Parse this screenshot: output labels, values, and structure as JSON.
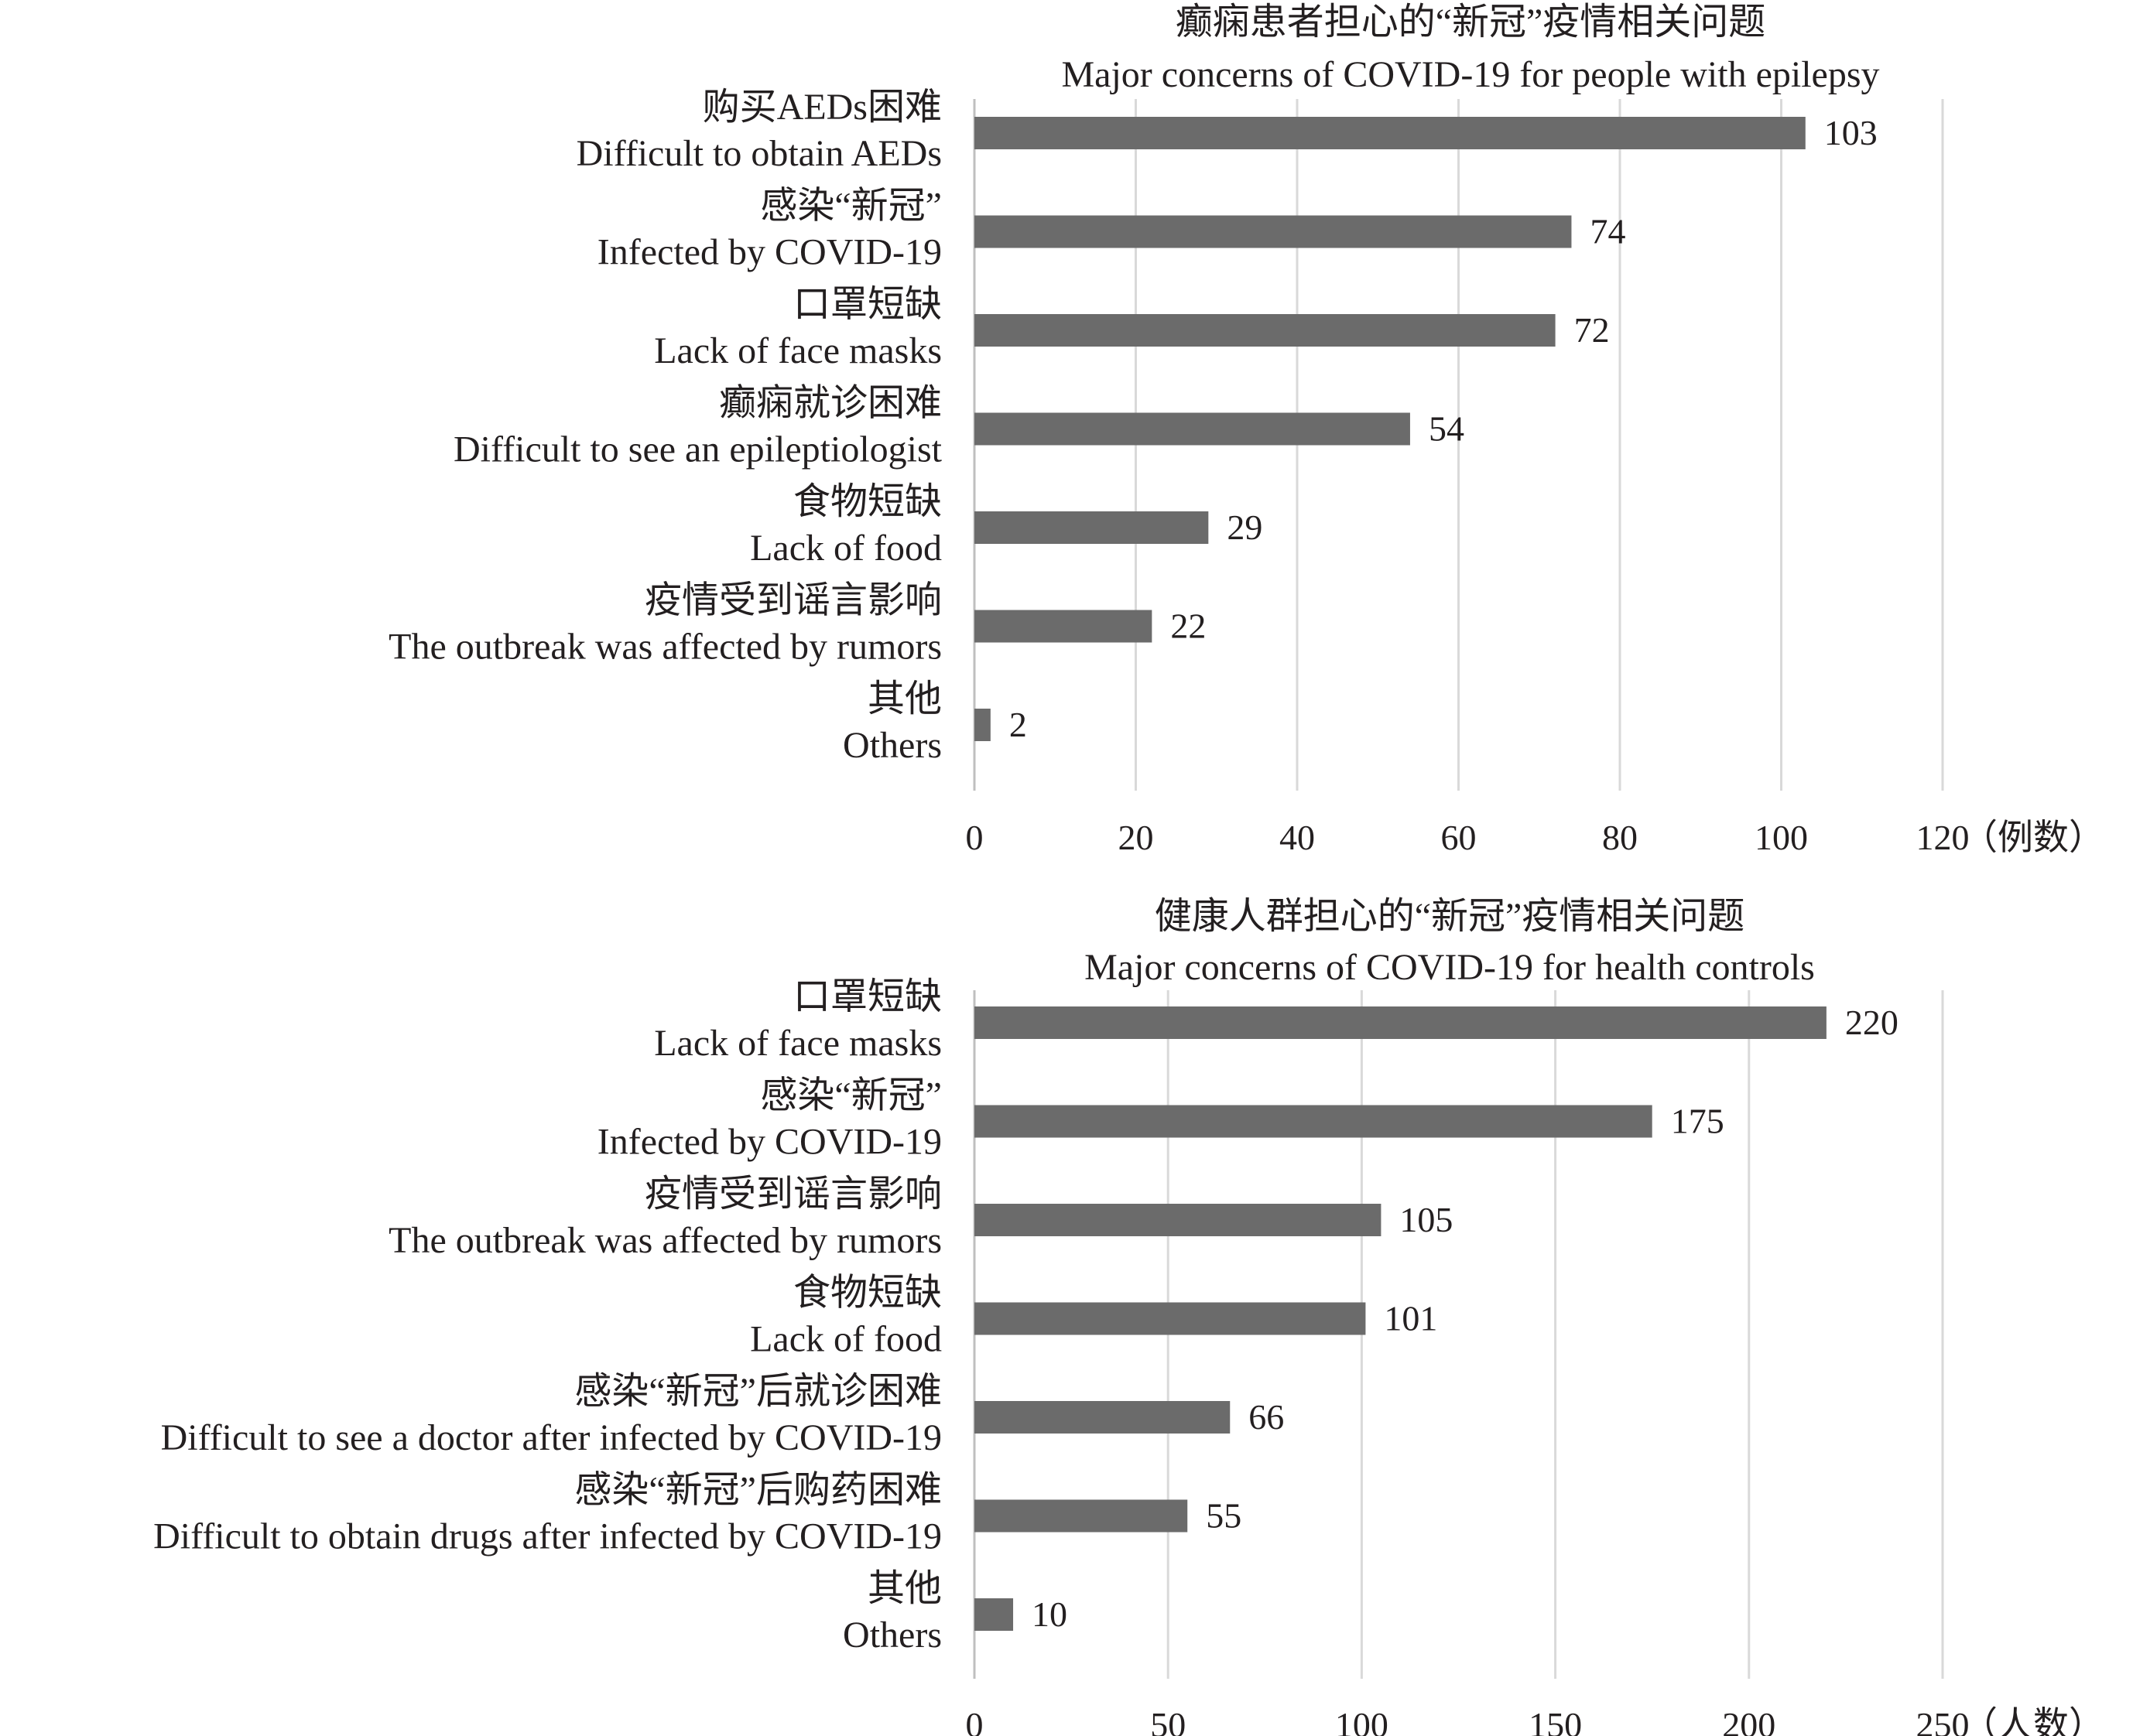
{
  "chart_data": [
    {
      "type": "bar",
      "orientation": "horizontal",
      "title": "癫痫患者担心的“新冠”疫情相关问题",
      "subtitle": "Major concerns of COVID-19 for people with epilepsy",
      "categories": [
        {
          "zh": "购买AEDs困难",
          "en": "Difficult to obtain AEDs"
        },
        {
          "zh": "感染“新冠”",
          "en": "Infected by COVID-19"
        },
        {
          "zh": "口罩短缺",
          "en": "Lack of face masks"
        },
        {
          "zh": "癫痫就诊困难",
          "en": "Difficult to see an epileptiologist"
        },
        {
          "zh": "食物短缺",
          "en": "Lack of food"
        },
        {
          "zh": "疫情受到谣言影响",
          "en": "The outbreak was affected by rumors"
        },
        {
          "zh": "其他",
          "en": "Others"
        }
      ],
      "values": [
        103,
        74,
        72,
        54,
        29,
        22,
        2
      ],
      "xlim": [
        0,
        120
      ],
      "xticks": [
        "0",
        "20",
        "40",
        "60",
        "80",
        "100",
        "120"
      ],
      "unit_label": "（例数）",
      "grid": true,
      "bar_color": "#6b6b6b"
    },
    {
      "type": "bar",
      "orientation": "horizontal",
      "title": "健康人群担心的“新冠”疫情相关问题",
      "subtitle": "Major concerns of COVID-19 for health controls",
      "categories": [
        {
          "zh": "口罩短缺",
          "en": "Lack of face masks"
        },
        {
          "zh": "感染“新冠”",
          "en": "Infected by COVID-19"
        },
        {
          "zh": "疫情受到谣言影响",
          "en": "The outbreak was affected by rumors"
        },
        {
          "zh": "食物短缺",
          "en": "Lack of food"
        },
        {
          "zh": "感染“新冠”后就诊困难",
          "en": "Difficult to see a doctor after infected by COVID-19"
        },
        {
          "zh": "感染“新冠”后购药困难",
          "en": "Difficult to obtain drugs after infected by COVID-19"
        },
        {
          "zh": "其他",
          "en": "Others"
        }
      ],
      "values": [
        220,
        175,
        105,
        101,
        66,
        55,
        10
      ],
      "xlim": [
        0,
        250
      ],
      "xticks": [
        "0",
        "50",
        "100",
        "150",
        "200",
        "250"
      ],
      "unit_label": "（人数）",
      "grid": true,
      "bar_color": "#6b6b6b"
    }
  ]
}
